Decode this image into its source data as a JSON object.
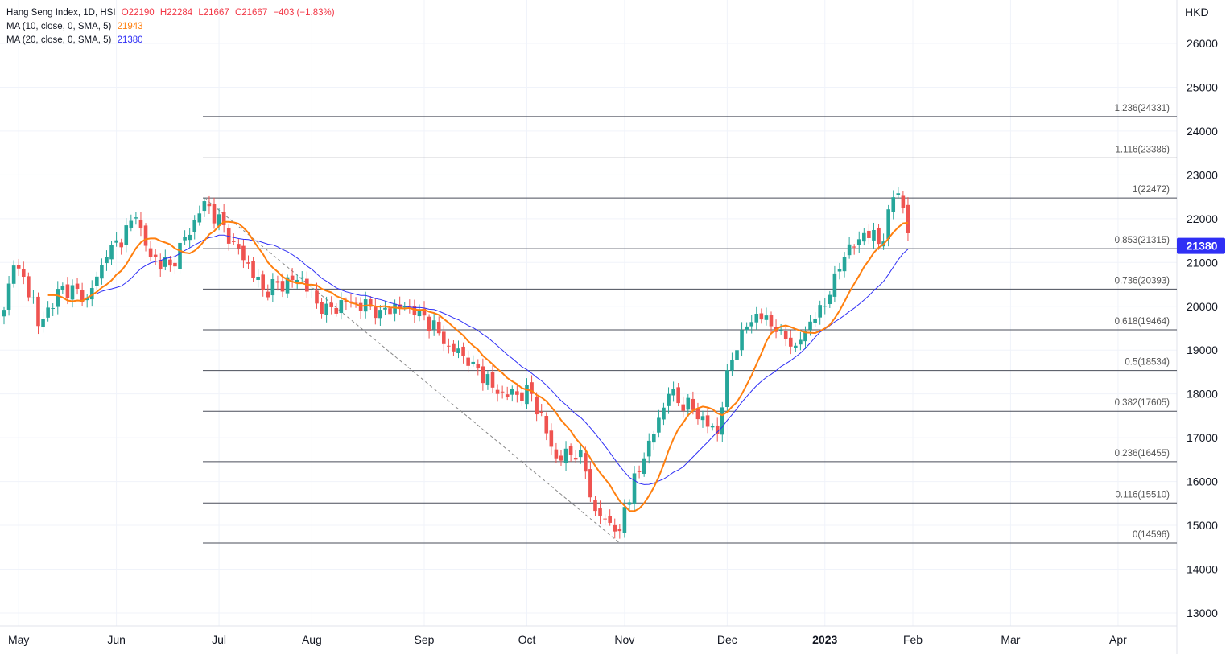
{
  "legend": {
    "title": "Hang Seng Index, 1D, HSI",
    "o": "O22190",
    "h": "H22284",
    "l": "L21667",
    "c": "C21667",
    "chg": "−403 (−1.83%)",
    "ma10_label": "MA (10, close, 0, SMA, 5)",
    "ma10_value": "21943",
    "ma20_label": "MA (20, close, 0, SMA, 5)",
    "ma20_value": "21380"
  },
  "colors": {
    "up": "#26a69a",
    "down": "#ef5350",
    "ma10": "#ff7f0e",
    "ma20": "#2f2ff5",
    "fib": "#4a4e5a"
  },
  "chart_data": {
    "type": "candlestick",
    "currency": "HKD",
    "ylim": [
      12700,
      26700
    ],
    "y_ticks": [
      "26000",
      "25000",
      "24000",
      "23000",
      "22000",
      "21000",
      "20000",
      "19000",
      "18000",
      "17000",
      "16000",
      "15000",
      "14000",
      "13000"
    ],
    "x_ticks": [
      {
        "label": "May",
        "i": 3
      },
      {
        "label": "Jun",
        "i": 23
      },
      {
        "label": "Jul",
        "i": 44
      },
      {
        "label": "Aug",
        "i": 63
      },
      {
        "label": "Sep",
        "i": 86
      },
      {
        "label": "Oct",
        "i": 107
      },
      {
        "label": "Nov",
        "i": 127
      },
      {
        "label": "Dec",
        "i": 148
      },
      {
        "label": "2023",
        "i": 168
      },
      {
        "label": "Feb",
        "i": 186
      },
      {
        "label": "Mar",
        "i": 206
      },
      {
        "label": "Apr",
        "i": 228
      }
    ],
    "close_keypoints": [
      [
        0,
        19920
      ],
      [
        2,
        20930
      ],
      [
        6,
        20200
      ],
      [
        7,
        19550
      ],
      [
        12,
        20470
      ],
      [
        17,
        20200
      ],
      [
        21,
        21120
      ],
      [
        27,
        22030
      ],
      [
        30,
        21120
      ],
      [
        34,
        20930
      ],
      [
        40,
        22120
      ],
      [
        41,
        22400
      ],
      [
        47,
        21480
      ],
      [
        53,
        20380
      ],
      [
        61,
        20660
      ],
      [
        65,
        19830
      ],
      [
        70,
        20100
      ],
      [
        77,
        19920
      ],
      [
        82,
        20010
      ],
      [
        85,
        19920
      ],
      [
        91,
        19100
      ],
      [
        96,
        18730
      ],
      [
        101,
        18000
      ],
      [
        108,
        18000
      ],
      [
        113,
        16530
      ],
      [
        118,
        16710
      ],
      [
        121,
        15330
      ],
      [
        126,
        14870
      ],
      [
        127,
        15420
      ],
      [
        131,
        16530
      ],
      [
        136,
        18000
      ],
      [
        141,
        17630
      ],
      [
        146,
        17080
      ],
      [
        148,
        18540
      ],
      [
        151,
        19460
      ],
      [
        154,
        19830
      ],
      [
        159,
        19460
      ],
      [
        162,
        19100
      ],
      [
        165,
        19650
      ],
      [
        168,
        20010
      ],
      [
        170,
        20750
      ],
      [
        172,
        21120
      ],
      [
        176,
        21670
      ],
      [
        180,
        21480
      ],
      [
        182,
        22490
      ],
      [
        183,
        22580
      ],
      [
        185,
        21667
      ]
    ],
    "last_price": "21380",
    "fib_levels": [
      {
        "label": "1.236(24331)",
        "p": 24331
      },
      {
        "label": "1.116(23386)",
        "p": 23386
      },
      {
        "label": "1(22472)",
        "p": 22472
      },
      {
        "label": "0.853(21315)",
        "p": 21315
      },
      {
        "label": "0.736(20393)",
        "p": 20393
      },
      {
        "label": "0.618(19464)",
        "p": 19464
      },
      {
        "label": "0.5(18534)",
        "p": 18534
      },
      {
        "label": "0.382(17605)",
        "p": 17605
      },
      {
        "label": "0.236(16455)",
        "p": 16455
      },
      {
        "label": "0.116(15510)",
        "p": 15510
      },
      {
        "label": "0(14596)",
        "p": 14596
      }
    ],
    "trend_line": {
      "from": {
        "i": 41,
        "p": 22472
      },
      "to": {
        "i": 126,
        "p": 14596
      }
    }
  }
}
